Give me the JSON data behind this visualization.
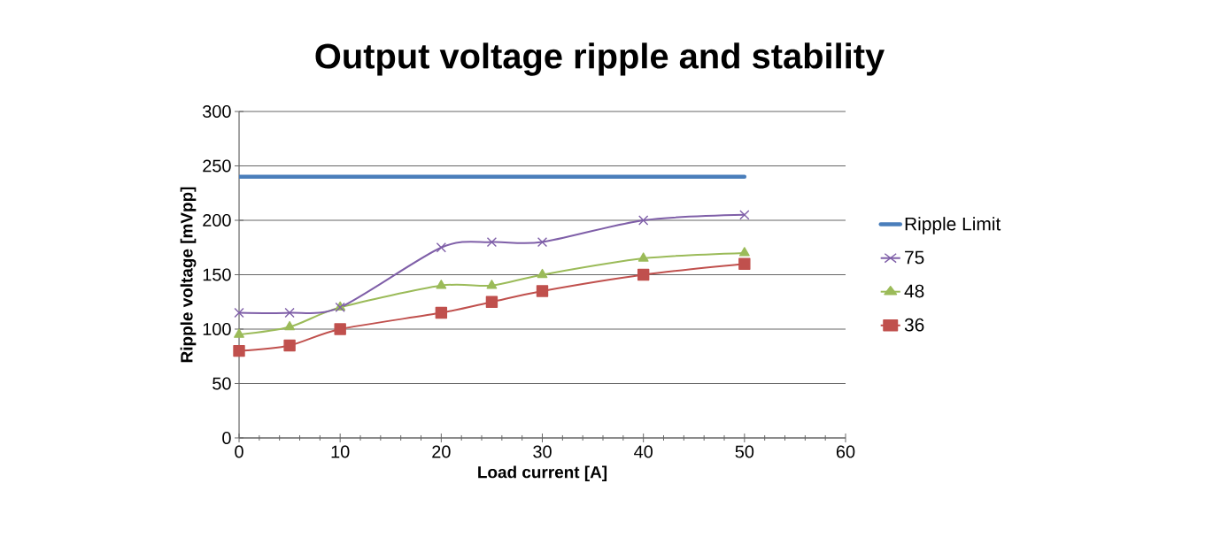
{
  "chart_data": {
    "type": "line",
    "title": "Output voltage ripple and stability",
    "xlabel": "Load current [A]",
    "ylabel": "Ripple voltage [mVpp]",
    "x": [
      0,
      5,
      10,
      20,
      25,
      30,
      40,
      50
    ],
    "series": [
      {
        "name": "Ripple Limit",
        "color": "#4a7ebb",
        "marker": "none",
        "values": [
          240,
          240,
          240,
          240,
          240,
          240,
          240,
          240
        ]
      },
      {
        "name": "75",
        "color": "#7f5fa8",
        "marker": "cross",
        "values": [
          115,
          115,
          120,
          175,
          180,
          180,
          200,
          205
        ]
      },
      {
        "name": "48",
        "color": "#9bbb59",
        "marker": "triangle",
        "values": [
          95,
          102,
          120,
          140,
          140,
          150,
          165,
          170
        ]
      },
      {
        "name": "36",
        "color": "#c0504d",
        "marker": "square",
        "values": [
          80,
          85,
          100,
          115,
          125,
          135,
          150,
          160
        ]
      }
    ],
    "xlim": [
      0,
      60
    ],
    "xticks": [
      0,
      10,
      20,
      30,
      40,
      50,
      60
    ],
    "ylim": [
      0,
      300
    ],
    "yticks": [
      0,
      50,
      100,
      150,
      200,
      250,
      300
    ],
    "grid": "y",
    "legend": "right"
  }
}
